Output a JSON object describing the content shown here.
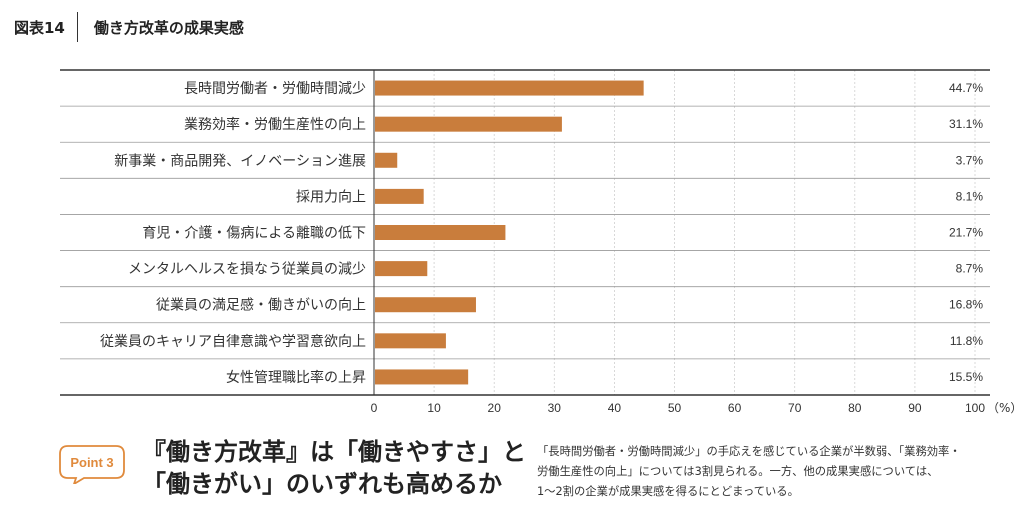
{
  "header": {
    "figure_label": "図表14",
    "title": "働き方改革の成果実感"
  },
  "chart_data": {
    "type": "bar",
    "orientation": "horizontal",
    "title": "働き方改革の成果実感",
    "categories": [
      "長時間労働者・労働時間減少",
      "業務効率・労働生産性の向上",
      "新事業・商品開発、イノベーション進展",
      "採用力向上",
      "育児・介護・傷病による離職の低下",
      "メンタルヘルスを損なう従業員の減少",
      "従業員の満足感・働きがいの向上",
      "従業員のキャリア自律意識や学習意欲向上",
      "女性管理職比率の上昇"
    ],
    "values": [
      44.7,
      31.1,
      3.7,
      8.1,
      21.7,
      8.7,
      16.8,
      11.8,
      15.5
    ],
    "value_labels": [
      "44.7%",
      "31.1%",
      "3.7%",
      "8.1%",
      "21.7%",
      "8.7%",
      "16.8%",
      "11.8%",
      "15.5%"
    ],
    "xlim": [
      0,
      100
    ],
    "xticks": [
      "0",
      "10",
      "20",
      "30",
      "40",
      "50",
      "60",
      "70",
      "80",
      "90",
      "100"
    ],
    "unit_label": "（%）",
    "grid": true,
    "bar_color": "#c97d3c"
  },
  "point": {
    "badge": "Point 3",
    "line1": "『働き方改革』は「働きやすさ」と",
    "line2": "「働きがい」のいずれも高めるか",
    "accent_color": "#e08a3c"
  },
  "summary": {
    "line1": "「長時間労働者・労働時間減少」の手応えを感じている企業が半数弱、「業務効率・",
    "line2": "労働生産性の向上」については3割見られる。一方、他の成果実感については、",
    "line3": "1〜2割の企業が成果実感を得るにとどまっている。"
  }
}
